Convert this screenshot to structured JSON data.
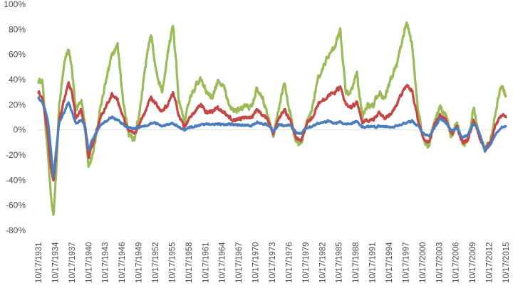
{
  "chart_data": {
    "type": "line",
    "title": "",
    "xlabel": "",
    "ylabel": "",
    "ylim": [
      -80,
      100
    ],
    "y_ticks": [
      {
        "value": 100,
        "label": "100%"
      },
      {
        "value": 80,
        "label": "80%"
      },
      {
        "value": 60,
        "label": "60%"
      },
      {
        "value": 40,
        "label": "40%"
      },
      {
        "value": 20,
        "label": "20%"
      },
      {
        "value": 0,
        "label": "0%"
      },
      {
        "value": -20,
        "label": "-20%"
      },
      {
        "value": -40,
        "label": "-40%"
      },
      {
        "value": -60,
        "label": "-60%"
      },
      {
        "value": -80,
        "label": "-80%"
      }
    ],
    "xlim": [
      1931.79,
      2015.79
    ],
    "x_ticks": [
      {
        "value": 1931.79,
        "label": "10/17/1931"
      },
      {
        "value": 1934.79,
        "label": "10/17/1934"
      },
      {
        "value": 1937.79,
        "label": "10/17/1937"
      },
      {
        "value": 1940.79,
        "label": "10/17/1940"
      },
      {
        "value": 1943.79,
        "label": "10/17/1943"
      },
      {
        "value": 1946.79,
        "label": "10/17/1946"
      },
      {
        "value": 1949.79,
        "label": "10/17/1949"
      },
      {
        "value": 1952.79,
        "label": "10/17/1952"
      },
      {
        "value": 1955.79,
        "label": "10/17/1955"
      },
      {
        "value": 1958.79,
        "label": "10/17/1958"
      },
      {
        "value": 1961.79,
        "label": "10/17/1961"
      },
      {
        "value": 1964.79,
        "label": "10/17/1964"
      },
      {
        "value": 1967.79,
        "label": "10/17/1967"
      },
      {
        "value": 1970.79,
        "label": "10/17/1970"
      },
      {
        "value": 1973.79,
        "label": "10/17/1973"
      },
      {
        "value": 1976.79,
        "label": "10/17/1976"
      },
      {
        "value": 1979.79,
        "label": "10/17/1979"
      },
      {
        "value": 1982.79,
        "label": "10/17/1982"
      },
      {
        "value": 1985.79,
        "label": "10/17/1985"
      },
      {
        "value": 1988.79,
        "label": "10/17/1988"
      },
      {
        "value": 1991.79,
        "label": "10/17/1991"
      },
      {
        "value": 1994.79,
        "label": "10/17/1994"
      },
      {
        "value": 1997.79,
        "label": "10/17/1997"
      },
      {
        "value": 2000.79,
        "label": "10/17/2000"
      },
      {
        "value": 2003.79,
        "label": "10/17/2003"
      },
      {
        "value": 2006.79,
        "label": "10/17/2006"
      },
      {
        "value": 2009.79,
        "label": "10/17/2009"
      },
      {
        "value": 2012.79,
        "label": "10/17/2012"
      },
      {
        "value": 2015.79,
        "label": "10/17/2015"
      }
    ],
    "grid": false,
    "legend": "none",
    "series": [
      {
        "color": "#4a7ebf",
        "x": [
          1931.8,
          1932.5,
          1933.0,
          1933.5,
          1934.0,
          1934.5,
          1935.0,
          1935.5,
          1936.5,
          1937.2,
          1937.8,
          1938.5,
          1939.5,
          1940.2,
          1940.8,
          1941.5,
          1942.2,
          1943.0,
          1944.0,
          1945.0,
          1946.0,
          1947.0,
          1948.0,
          1949.0,
          1950.0,
          1951.0,
          1952.0,
          1953.0,
          1954.0,
          1955.0,
          1956.0,
          1957.0,
          1958.0,
          1959.0,
          1960.0,
          1961.0,
          1962.0,
          1963.0,
          1964.0,
          1965.0,
          1966.0,
          1967.0,
          1968.0,
          1969.0,
          1970.0,
          1971.0,
          1972.0,
          1973.0,
          1974.0,
          1975.0,
          1976.0,
          1977.0,
          1978.0,
          1979.0,
          1980.0,
          1981.0,
          1982.0,
          1983.0,
          1984.0,
          1985.0,
          1986.0,
          1987.0,
          1988.0,
          1989.0,
          1990.0,
          1991.0,
          1992.0,
          1993.0,
          1994.0,
          1995.0,
          1996.0,
          1997.0,
          1998.0,
          1999.0,
          2000.0,
          2001.0,
          2002.0,
          2003.0,
          2004.0,
          2005.0,
          2006.0,
          2007.0,
          2008.0,
          2009.0,
          2010.0,
          2011.0,
          2012.0,
          2013.0,
          2014.0,
          2015.0,
          2015.8
        ],
        "y": [
          26,
          22,
          16,
          8,
          -15,
          -38,
          -15,
          6,
          15,
          22,
          14,
          5,
          8,
          2,
          -16,
          -8,
          -2,
          4,
          7,
          10,
          8,
          4,
          2,
          1,
          2,
          3,
          5,
          5,
          3,
          4,
          5,
          2,
          0,
          2,
          3,
          4,
          5,
          4,
          5,
          4,
          5,
          4,
          4,
          4,
          3,
          6,
          5,
          4,
          -1,
          4,
          3,
          4,
          -2,
          -3,
          2,
          3,
          5,
          6,
          7,
          5,
          6,
          4,
          5,
          7,
          2,
          3,
          2,
          3,
          3,
          2,
          3,
          4,
          6,
          7,
          3,
          -3,
          -5,
          2,
          9,
          6,
          -1,
          1,
          -6,
          -4,
          5,
          -2,
          -16,
          -12,
          -3,
          2,
          3
        ]
      },
      {
        "color": "#c44645",
        "x": [
          1931.8,
          1932.5,
          1933.0,
          1933.5,
          1934.0,
          1934.5,
          1935.0,
          1935.5,
          1936.5,
          1937.2,
          1937.8,
          1938.5,
          1939.5,
          1940.2,
          1940.8,
          1941.5,
          1942.2,
          1943.0,
          1944.0,
          1945.0,
          1946.0,
          1947.0,
          1948.0,
          1949.0,
          1950.0,
          1951.0,
          1952.0,
          1953.0,
          1954.0,
          1955.0,
          1956.0,
          1957.0,
          1958.0,
          1959.0,
          1960.0,
          1961.0,
          1962.0,
          1963.0,
          1964.0,
          1965.0,
          1966.0,
          1967.0,
          1968.0,
          1969.0,
          1970.0,
          1971.0,
          1972.0,
          1973.0,
          1974.0,
          1975.0,
          1976.0,
          1977.0,
          1978.0,
          1979.0,
          1980.0,
          1981.0,
          1982.0,
          1983.0,
          1984.0,
          1985.0,
          1986.0,
          1987.0,
          1988.0,
          1989.0,
          1990.0,
          1991.0,
          1992.0,
          1993.0,
          1994.0,
          1995.0,
          1996.0,
          1997.0,
          1998.0,
          1999.0,
          2000.0,
          2001.0,
          2002.0,
          2003.0,
          2004.0,
          2005.0,
          2006.0,
          2007.0,
          2008.0,
          2009.0,
          2010.0,
          2011.0,
          2012.0,
          2013.0,
          2014.0,
          2015.0,
          2015.8
        ],
        "y": [
          30,
          25,
          10,
          -5,
          -30,
          -42,
          -18,
          8,
          25,
          38,
          30,
          10,
          16,
          0,
          -22,
          -12,
          0,
          10,
          20,
          28,
          24,
          10,
          0,
          -3,
          5,
          15,
          25,
          20,
          14,
          20,
          30,
          12,
          2,
          10,
          15,
          20,
          14,
          15,
          18,
          14,
          10,
          8,
          9,
          10,
          10,
          16,
          12,
          8,
          -3,
          10,
          16,
          8,
          -6,
          -8,
          5,
          10,
          20,
          24,
          28,
          30,
          34,
          20,
          18,
          22,
          6,
          8,
          8,
          14,
          10,
          12,
          18,
          28,
          36,
          30,
          8,
          -8,
          -10,
          5,
          12,
          8,
          -3,
          2,
          -10,
          -8,
          8,
          -5,
          -16,
          -10,
          5,
          12,
          11
        ]
      },
      {
        "color": "#9bbb59",
        "x": [
          1931.8,
          1932.5,
          1933.0,
          1933.5,
          1934.0,
          1934.5,
          1935.0,
          1935.5,
          1936.5,
          1937.2,
          1937.8,
          1938.5,
          1939.5,
          1940.2,
          1940.8,
          1941.5,
          1942.2,
          1943.0,
          1944.0,
          1945.0,
          1946.0,
          1947.0,
          1948.0,
          1949.0,
          1950.0,
          1951.0,
          1952.0,
          1953.0,
          1954.0,
          1955.0,
          1956.0,
          1957.0,
          1958.0,
          1959.0,
          1960.0,
          1961.0,
          1962.0,
          1963.0,
          1964.0,
          1965.0,
          1966.0,
          1967.0,
          1968.0,
          1969.0,
          1970.0,
          1971.0,
          1972.0,
          1973.0,
          1974.0,
          1975.0,
          1976.0,
          1977.0,
          1978.0,
          1979.0,
          1980.0,
          1981.0,
          1982.0,
          1983.0,
          1984.0,
          1985.0,
          1986.0,
          1987.0,
          1988.0,
          1989.0,
          1990.0,
          1991.0,
          1992.0,
          1993.0,
          1994.0,
          1995.0,
          1996.0,
          1997.0,
          1998.0,
          1999.0,
          2000.0,
          2001.0,
          2002.0,
          2003.0,
          2004.0,
          2005.0,
          2006.0,
          2007.0,
          2008.0,
          2009.0,
          2010.0,
          2011.0,
          2012.0,
          2013.0,
          2014.0,
          2015.0,
          2015.8
        ],
        "y": [
          38,
          40,
          5,
          -20,
          -50,
          -70,
          -30,
          20,
          55,
          65,
          48,
          15,
          25,
          0,
          -30,
          -20,
          -5,
          20,
          40,
          60,
          68,
          22,
          -5,
          -8,
          15,
          50,
          78,
          45,
          30,
          60,
          84,
          25,
          5,
          25,
          35,
          40,
          30,
          25,
          38,
          35,
          20,
          15,
          16,
          18,
          18,
          32,
          25,
          12,
          -5,
          18,
          36,
          15,
          -10,
          -10,
          5,
          18,
          40,
          50,
          60,
          65,
          80,
          30,
          30,
          45,
          10,
          20,
          20,
          30,
          25,
          40,
          50,
          70,
          85,
          65,
          15,
          -10,
          -12,
          8,
          18,
          12,
          -5,
          5,
          -12,
          -8,
          18,
          -5,
          -15,
          -8,
          15,
          38,
          25
        ]
      }
    ]
  }
}
